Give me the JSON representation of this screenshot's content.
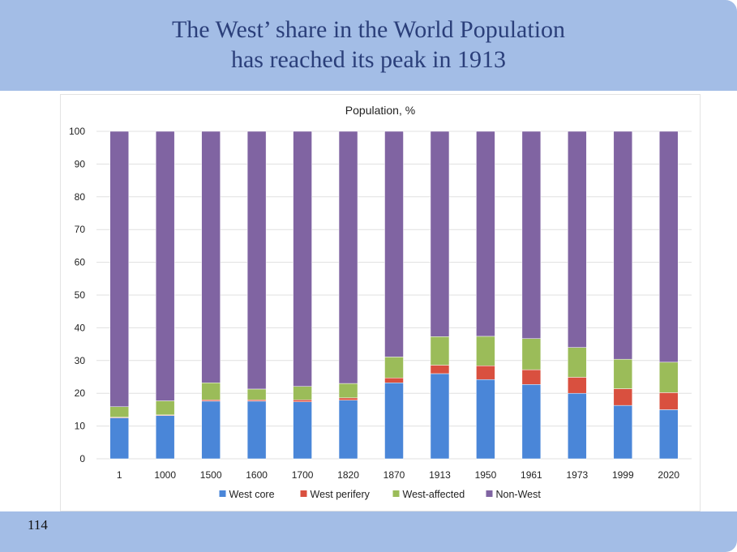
{
  "slide": {
    "title_line1": "The West’ share in the World Population",
    "title_line2": "has reached its peak in 1913",
    "page_number": "114"
  },
  "chart_data": {
    "type": "bar",
    "stacked": true,
    "title": "Population, %",
    "xlabel": "",
    "ylabel": "",
    "ylim": [
      0,
      100
    ],
    "yticks": [
      0,
      10,
      20,
      30,
      40,
      50,
      60,
      70,
      80,
      90,
      100
    ],
    "grid": true,
    "legend_position": "bottom",
    "categories": [
      "1",
      "1000",
      "1500",
      "1600",
      "1700",
      "1820",
      "1870",
      "1913",
      "1950",
      "1961",
      "1973",
      "1999",
      "2020"
    ],
    "series": [
      {
        "name": "West core",
        "color": "#4a86d8",
        "values": [
          12.5,
          13.2,
          17.6,
          17.6,
          17.4,
          17.9,
          23.2,
          26.0,
          24.2,
          22.7,
          20.0,
          16.3,
          15.0
        ]
      },
      {
        "name": "West perifery",
        "color": "#d9503f",
        "values": [
          0.2,
          0.2,
          0.4,
          0.4,
          0.6,
          0.7,
          1.5,
          2.6,
          4.2,
          4.5,
          4.9,
          5.1,
          5.2
        ]
      },
      {
        "name": "West-affected",
        "color": "#9bbc59",
        "values": [
          3.2,
          4.3,
          5.2,
          3.3,
          4.1,
          4.4,
          6.4,
          8.7,
          9.0,
          9.5,
          9.1,
          9.0,
          9.3
        ]
      },
      {
        "name": "Non-West",
        "color": "#8064a2",
        "values": [
          84.1,
          82.3,
          76.8,
          78.7,
          77.9,
          77.0,
          68.9,
          62.7,
          62.6,
          63.3,
          66.0,
          69.6,
          70.5
        ]
      }
    ]
  }
}
